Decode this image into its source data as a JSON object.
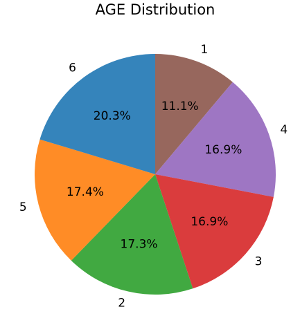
{
  "chart_data": {
    "type": "pie",
    "title": "AGE Distribution",
    "start_angle_deg": 90,
    "direction": "clockwise",
    "slices": [
      {
        "label": "1",
        "percent": 11.1,
        "percent_label": "11.1%",
        "color": "#8c564b"
      },
      {
        "label": "4",
        "percent": 16.9,
        "percent_label": "16.9%",
        "color": "#9467bd"
      },
      {
        "label": "3",
        "percent": 16.9,
        "percent_label": "16.9%",
        "color": "#d62728"
      },
      {
        "label": "2",
        "percent": 17.3,
        "percent_label": "17.3%",
        "color": "#2ca02c"
      },
      {
        "label": "5",
        "percent": 17.4,
        "percent_label": "17.4%",
        "color": "#ff7f0e"
      },
      {
        "label": "6",
        "percent": 20.3,
        "percent_label": "20.3%",
        "color": "#1f77b4"
      }
    ],
    "legend": false,
    "grid": false
  }
}
